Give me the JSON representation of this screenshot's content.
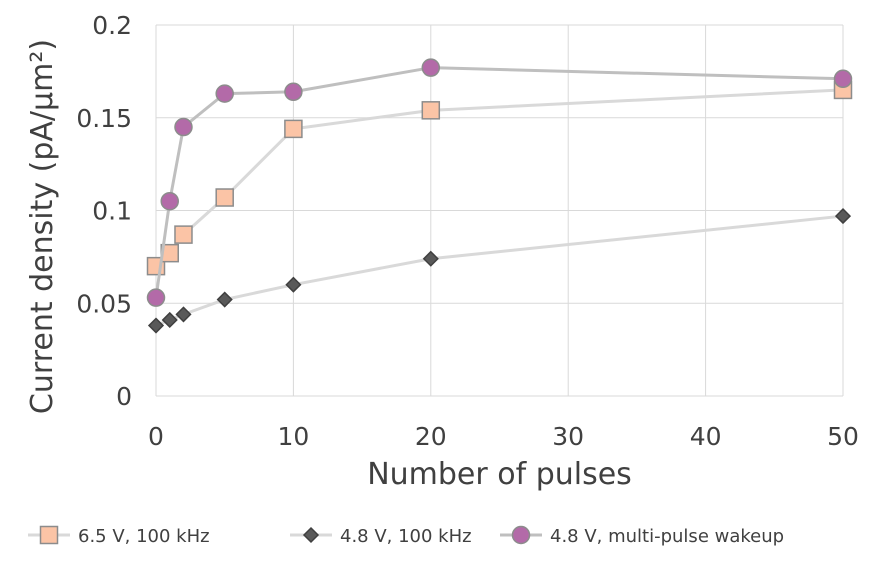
{
  "chart_data": {
    "type": "line",
    "title": "",
    "xlabel": "Number of pulses",
    "ylabel": "Current density (pA/µm²)",
    "xlim": [
      0,
      50
    ],
    "ylim": [
      0,
      0.2
    ],
    "x_ticks": [
      0,
      10,
      20,
      30,
      40,
      50
    ],
    "y_ticks": [
      0,
      0.05,
      0.1,
      0.15,
      0.2
    ],
    "x_tick_labels": [
      "0",
      "10",
      "20",
      "30",
      "40",
      "50"
    ],
    "y_tick_labels": [
      "0",
      "0.05",
      "0.1",
      "0.15",
      "0.2"
    ],
    "grid": true,
    "legend_position": "bottom",
    "series": [
      {
        "name": "6.5 V, 100 kHz",
        "marker": "square",
        "x": [
          0,
          1,
          2,
          5,
          10,
          20,
          50
        ],
        "y": [
          0.07,
          0.077,
          0.087,
          0.107,
          0.144,
          0.154,
          0.165
        ],
        "line_color": "#d9d9d9",
        "marker_fill": "#fbc4a6",
        "marker_stroke": "#8c8c8c"
      },
      {
        "name": "4.8 V, 100 kHz",
        "marker": "diamond",
        "x": [
          0,
          1,
          2,
          5,
          10,
          20,
          50
        ],
        "y": [
          0.038,
          0.041,
          0.044,
          0.052,
          0.06,
          0.074,
          0.097
        ],
        "line_color": "#d9d9d9",
        "marker_fill": "#595959",
        "marker_stroke": "#404040"
      },
      {
        "name": "4.8 V, multi-pulse wakeup",
        "marker": "circle",
        "x": [
          0,
          1,
          2,
          5,
          10,
          20,
          50
        ],
        "y": [
          0.053,
          0.105,
          0.145,
          0.163,
          0.164,
          0.177,
          0.171
        ],
        "line_color": "#bfbfbf",
        "marker_fill": "#b36aa8",
        "marker_stroke": "#8c8c8c"
      }
    ]
  }
}
